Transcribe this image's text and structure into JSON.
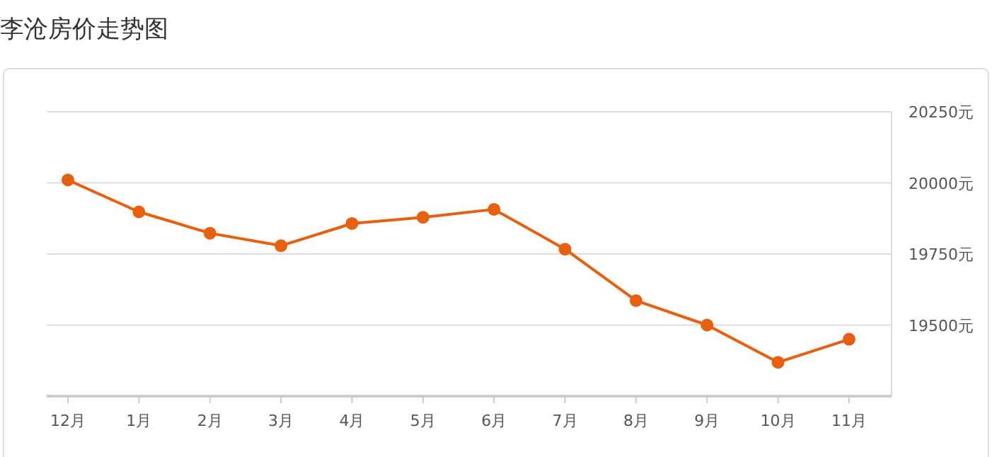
{
  "chart_data": {
    "type": "line",
    "title": "李沧房价走势图",
    "categories": [
      "12月",
      "1月",
      "2月",
      "3月",
      "4月",
      "5月",
      "6月",
      "7月",
      "8月",
      "9月",
      "10月",
      "11月"
    ],
    "series": [
      {
        "color": "#e8600e",
        "values": [
          20010,
          19898,
          19823,
          19779,
          19857,
          19879,
          19907,
          19767,
          19586,
          19500,
          19369,
          19450
        ]
      }
    ],
    "ylim": [
      19250,
      20250
    ],
    "yticks": [
      {
        "value": 19500,
        "label": "19500元"
      },
      {
        "value": 19750,
        "label": "19750元"
      },
      {
        "value": 20000,
        "label": "20000元"
      },
      {
        "value": 20250,
        "label": "20250元"
      }
    ],
    "grid": "y",
    "marker": "circle",
    "line_style": "solid"
  }
}
